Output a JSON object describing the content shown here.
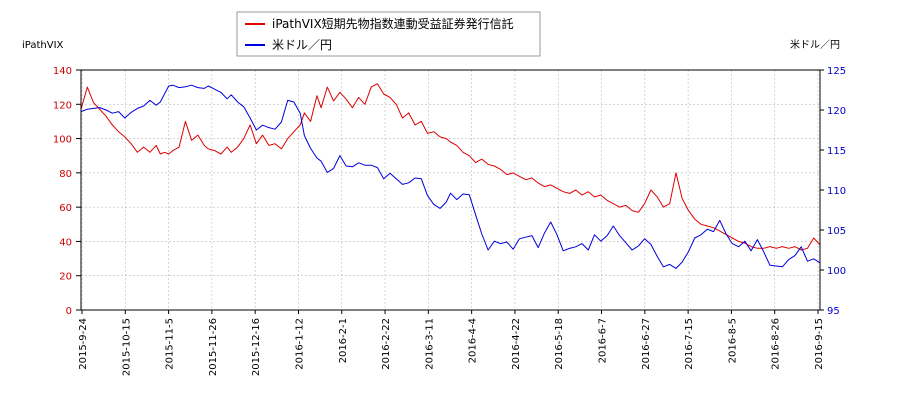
{
  "chart_data": {
    "type": "line",
    "left_axis_label": "iPathVIX",
    "right_axis_label": "米ドル／円",
    "legend": [
      "iPathVIX短期先物指数連動受益証券発行信託",
      "米ドル／円"
    ],
    "left_ylim": [
      0,
      140
    ],
    "left_yticks": [
      "0",
      "20",
      "40",
      "60",
      "80",
      "100",
      "120",
      "140"
    ],
    "right_ylim": [
      95,
      125
    ],
    "right_yticks": [
      "95",
      "100",
      "105",
      "110",
      "115",
      "120",
      "125"
    ],
    "x_ticks": [
      "2015-9-24",
      "2015-10-15",
      "2015-11-5",
      "2015-11-26",
      "2015-12-16",
      "2016-1-12",
      "2016-2-1",
      "2016-2-22",
      "2016-3-11",
      "2016-4-4",
      "2016-4-22",
      "2016-5-18",
      "2016-6-7",
      "2016-6-27",
      "2016-7-15",
      "2016-8-5",
      "2016-8-26",
      "2016-9-15"
    ],
    "grid": true,
    "series": [
      {
        "name": "iPathVIX短期先物指数連動受益証券発行信託",
        "axis": "left",
        "color": "#dd0000",
        "x": [
          0,
          3,
          6,
          9,
          12,
          15,
          18,
          21,
          24,
          27,
          30,
          33,
          36,
          38,
          40,
          42,
          44,
          47,
          50,
          53,
          56,
          59,
          61,
          64,
          67,
          70,
          72,
          75,
          78,
          81,
          84,
          87,
          90,
          93,
          96,
          99,
          102,
          105,
          107,
          110,
          113,
          115,
          118,
          121,
          124,
          127,
          130,
          133,
          136,
          139,
          142,
          145,
          148,
          151,
          154,
          157,
          160,
          163,
          166,
          169,
          172,
          175,
          177,
          180,
          183,
          186,
          189,
          192,
          195,
          198,
          201,
          204,
          207,
          210,
          213,
          216,
          219,
          222,
          225,
          228,
          231,
          234,
          237,
          240,
          243,
          246,
          249,
          252,
          255,
          258,
          261,
          264,
          267,
          270,
          273,
          276,
          279,
          282,
          285,
          288,
          291,
          294,
          297,
          300,
          303,
          306,
          309,
          312,
          315,
          318,
          321,
          324,
          327,
          330,
          333,
          336,
          339,
          342,
          345,
          348,
          351,
          354
        ],
        "values": [
          117,
          130,
          121,
          117,
          113,
          108,
          104,
          101,
          97,
          92,
          95,
          92,
          96,
          91,
          92,
          91,
          93,
          95,
          110,
          99,
          102,
          96,
          94,
          93,
          91,
          95,
          92,
          95,
          100,
          108,
          97,
          102,
          96,
          97,
          94,
          100,
          104,
          108,
          115,
          110,
          125,
          118,
          130,
          122,
          127,
          123,
          118,
          124,
          120,
          130,
          132,
          126,
          124,
          120,
          112,
          115,
          108,
          110,
          103,
          104,
          101,
          100,
          98,
          96,
          92,
          90,
          86,
          88,
          85,
          84,
          82,
          79,
          80,
          78,
          76,
          77,
          74,
          72,
          73,
          71,
          69,
          68,
          70,
          67,
          69,
          66,
          67,
          64,
          62,
          60,
          61,
          58,
          57,
          62,
          70,
          66,
          60,
          62,
          80,
          65,
          58,
          53,
          50,
          49,
          48,
          46,
          44,
          42,
          40,
          39,
          37,
          36,
          36,
          37,
          36,
          37,
          36,
          37,
          35,
          36,
          42,
          38
        ]
      },
      {
        "name": "米ドル／円",
        "axis": "right",
        "color": "#0000dd",
        "x": [
          0,
          3,
          6,
          9,
          12,
          15,
          18,
          21,
          24,
          27,
          30,
          33,
          36,
          38,
          40,
          42,
          44,
          47,
          50,
          53,
          56,
          59,
          61,
          64,
          67,
          70,
          72,
          75,
          78,
          81,
          84,
          87,
          90,
          93,
          96,
          99,
          102,
          105,
          107,
          110,
          113,
          115,
          118,
          121,
          124,
          127,
          130,
          133,
          136,
          139,
          142,
          145,
          148,
          151,
          154,
          157,
          160,
          163,
          166,
          169,
          172,
          175,
          177,
          180,
          183,
          186,
          189,
          192,
          195,
          198,
          201,
          204,
          207,
          210,
          213,
          216,
          219,
          222,
          225,
          228,
          231,
          234,
          237,
          240,
          243,
          246,
          249,
          252,
          255,
          258,
          261,
          264,
          267,
          270,
          273,
          276,
          279,
          282,
          285,
          288,
          291,
          294,
          297,
          300,
          303,
          306,
          309,
          312,
          315,
          318,
          321,
          324,
          327,
          330,
          333,
          336,
          339,
          342,
          345,
          348,
          351,
          354
        ],
        "values": [
          119.8,
          120.1,
          120.2,
          120.3,
          120.0,
          119.6,
          119.8,
          119.0,
          119.7,
          120.2,
          120.5,
          121.2,
          120.6,
          121.0,
          122.0,
          123.0,
          123.1,
          122.8,
          122.9,
          123.1,
          122.8,
          122.7,
          123.0,
          122.6,
          122.2,
          121.4,
          121.9,
          121.0,
          120.4,
          119.0,
          117.5,
          118.1,
          117.8,
          117.6,
          118.5,
          121.2,
          121.0,
          119.6,
          116.8,
          115.2,
          114.0,
          113.6,
          112.2,
          112.7,
          114.3,
          113.0,
          112.9,
          113.4,
          113.1,
          113.1,
          112.8,
          111.4,
          112.1,
          111.4,
          110.7,
          110.9,
          111.5,
          111.4,
          109.3,
          108.2,
          107.7,
          108.5,
          109.6,
          108.8,
          109.5,
          109.4,
          106.9,
          104.5,
          102.5,
          103.6,
          103.3,
          103.5,
          102.6,
          103.9,
          104.1,
          104.3,
          102.8,
          104.6,
          106.0,
          104.4,
          102.4,
          102.7,
          102.9,
          103.3,
          102.5,
          104.4,
          103.6,
          104.3,
          105.5,
          104.3,
          103.4,
          102.5,
          103.0,
          103.9,
          103.2,
          101.7,
          100.4,
          100.7,
          100.2,
          101.0,
          102.3,
          104.0,
          104.4,
          105.1,
          104.8,
          106.2,
          104.5,
          103.3,
          102.9,
          103.6,
          102.4,
          103.8,
          102.3,
          100.6,
          100.5,
          100.4,
          101.3,
          101.8,
          102.9,
          101.1,
          101.4,
          100.9
        ]
      }
    ]
  }
}
